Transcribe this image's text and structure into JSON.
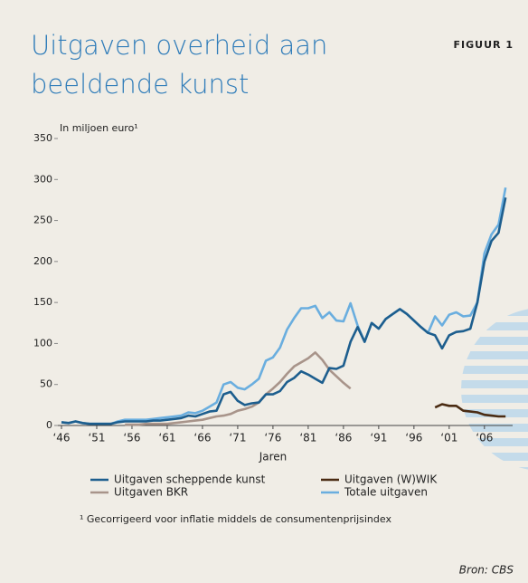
{
  "chart_data": {
    "type": "line",
    "title_lines": [
      "Uitgaven overheid aan",
      "beeldende kunst"
    ],
    "figure_label": "FIGUUR 1",
    "y_label": "In miljoen euro¹",
    "x_label": "Jaren",
    "footnote": "¹  Gecorrigeerd voor inflatie middels de consumentenprijsindex",
    "source": "Bron: CBS",
    "x": [
      1946,
      1947,
      1948,
      1949,
      1950,
      1951,
      1952,
      1953,
      1954,
      1955,
      1956,
      1957,
      1958,
      1959,
      1960,
      1961,
      1962,
      1963,
      1964,
      1965,
      1966,
      1967,
      1968,
      1969,
      1970,
      1971,
      1972,
      1973,
      1974,
      1975,
      1976,
      1977,
      1978,
      1979,
      1980,
      1981,
      1982,
      1983,
      1984,
      1985,
      1986,
      1987,
      1988,
      1989,
      1990,
      1991,
      1992,
      1993,
      1994,
      1995,
      1996,
      1997,
      1998,
      1999,
      2000,
      2001,
      2002,
      2003,
      2004,
      2005,
      2006,
      2007,
      2008,
      2009
    ],
    "series": [
      {
        "name": "Uitgaven scheppende kunst",
        "color": "#1d5e8e",
        "values": [
          4,
          3,
          5,
          3,
          2,
          2,
          2,
          2,
          4,
          5,
          5,
          5,
          5,
          6,
          6,
          7,
          8,
          9,
          12,
          11,
          14,
          17,
          18,
          38,
          41,
          30,
          25,
          27,
          28,
          38,
          38,
          42,
          53,
          58,
          66,
          62,
          57,
          52,
          70,
          69,
          73,
          102,
          120,
          102,
          125,
          118,
          130,
          136,
          142,
          136,
          128,
          120,
          113,
          110,
          94,
          110,
          114,
          115,
          118,
          150,
          200,
          225,
          235,
          278
        ]
      },
      {
        "name": "Uitgaven (W)WIK",
        "color": "#4a2b12",
        "values": [
          null,
          null,
          null,
          null,
          null,
          null,
          null,
          null,
          null,
          null,
          null,
          null,
          null,
          null,
          null,
          null,
          null,
          null,
          null,
          null,
          null,
          null,
          null,
          null,
          null,
          null,
          null,
          null,
          null,
          null,
          null,
          null,
          null,
          null,
          null,
          null,
          null,
          null,
          null,
          null,
          null,
          null,
          null,
          null,
          null,
          null,
          null,
          null,
          null,
          null,
          null,
          null,
          null,
          22,
          26,
          24,
          24,
          18,
          17,
          16,
          13,
          12,
          11,
          11
        ]
      },
      {
        "name": "Uitgaven BKR",
        "color": "#a8948a",
        "values": [
          null,
          null,
          null,
          null,
          null,
          null,
          null,
          null,
          null,
          1,
          1,
          1,
          2,
          2,
          2,
          2,
          3,
          4,
          5,
          6,
          7,
          9,
          11,
          12,
          14,
          18,
          20,
          23,
          28,
          38,
          45,
          53,
          63,
          72,
          77,
          82,
          89,
          80,
          68,
          60,
          52,
          45,
          null,
          null,
          null,
          null,
          null,
          null,
          null,
          null,
          null,
          null,
          null,
          null,
          null,
          null,
          null,
          null,
          null,
          null,
          null,
          null,
          null,
          null
        ]
      },
      {
        "name": "Totale uitgaven",
        "color": "#6aaedf",
        "values": [
          4,
          3,
          5,
          3,
          2,
          2,
          2,
          2,
          5,
          7,
          7,
          7,
          7,
          8,
          9,
          10,
          11,
          12,
          16,
          15,
          18,
          23,
          28,
          50,
          53,
          46,
          44,
          50,
          57,
          79,
          83,
          95,
          117,
          131,
          143,
          143,
          146,
          131,
          138,
          128,
          127,
          149,
          122,
          102,
          125,
          118,
          130,
          136,
          142,
          136,
          128,
          120,
          113,
          133,
          122,
          135,
          138,
          133,
          134,
          150,
          210,
          233,
          245,
          290
        ]
      }
    ],
    "xlim": [
      1946,
      2010
    ],
    "xticks": [
      {
        "value": 1946,
        "label": "‘46"
      },
      {
        "value": 1951,
        "label": "‘51"
      },
      {
        "value": 1956,
        "label": "‘56"
      },
      {
        "value": 1961,
        "label": "‘61"
      },
      {
        "value": 1966,
        "label": "‘66"
      },
      {
        "value": 1971,
        "label": "‘71"
      },
      {
        "value": 1976,
        "label": "‘76"
      },
      {
        "value": 1981,
        "label": "‘81"
      },
      {
        "value": 1986,
        "label": "‘86"
      },
      {
        "value": 1991,
        "label": "‘91"
      },
      {
        "value": 1996,
        "label": "‘96"
      },
      {
        "value": 2001,
        "label": "‘01"
      },
      {
        "value": 2006,
        "label": "‘06"
      }
    ],
    "ylim": [
      0,
      350
    ],
    "yticks": [
      0,
      50,
      100,
      150,
      200,
      250,
      300,
      350
    ]
  }
}
